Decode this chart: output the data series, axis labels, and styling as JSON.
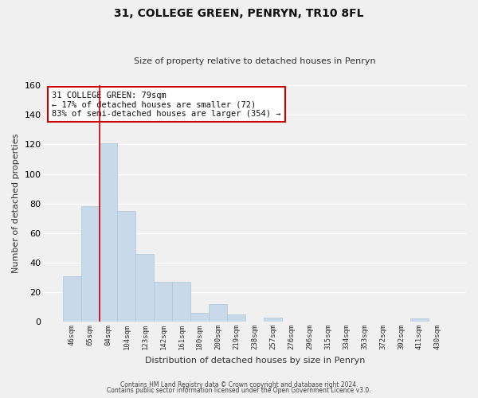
{
  "title": "31, COLLEGE GREEN, PENRYN, TR10 8FL",
  "subtitle": "Size of property relative to detached houses in Penryn",
  "xlabel": "Distribution of detached houses by size in Penryn",
  "ylabel": "Number of detached properties",
  "bar_color": "#c8d9ea",
  "bar_edge_color": "#aec6d8",
  "background_color": "#f0f0f0",
  "grid_color": "#ffffff",
  "bins": [
    "46sqm",
    "65sqm",
    "84sqm",
    "104sqm",
    "123sqm",
    "142sqm",
    "161sqm",
    "180sqm",
    "200sqm",
    "219sqm",
    "238sqm",
    "257sqm",
    "276sqm",
    "296sqm",
    "315sqm",
    "334sqm",
    "353sqm",
    "372sqm",
    "392sqm",
    "411sqm",
    "430sqm"
  ],
  "values": [
    31,
    78,
    121,
    75,
    46,
    27,
    27,
    6,
    12,
    5,
    0,
    3,
    0,
    0,
    0,
    0,
    0,
    0,
    0,
    2,
    0
  ],
  "property_line_x": 1.5,
  "property_line_color": "#cc0000",
  "annotation_text": "31 COLLEGE GREEN: 79sqm\n← 17% of detached houses are smaller (72)\n83% of semi-detached houses are larger (354) →",
  "annotation_box_color": "#ffffff",
  "annotation_box_edge": "#cc0000",
  "ylim": [
    0,
    160
  ],
  "yticks": [
    0,
    20,
    40,
    60,
    80,
    100,
    120,
    140,
    160
  ],
  "footnote1": "Contains HM Land Registry data © Crown copyright and database right 2024.",
  "footnote2": "Contains public sector information licensed under the Open Government Licence v3.0."
}
